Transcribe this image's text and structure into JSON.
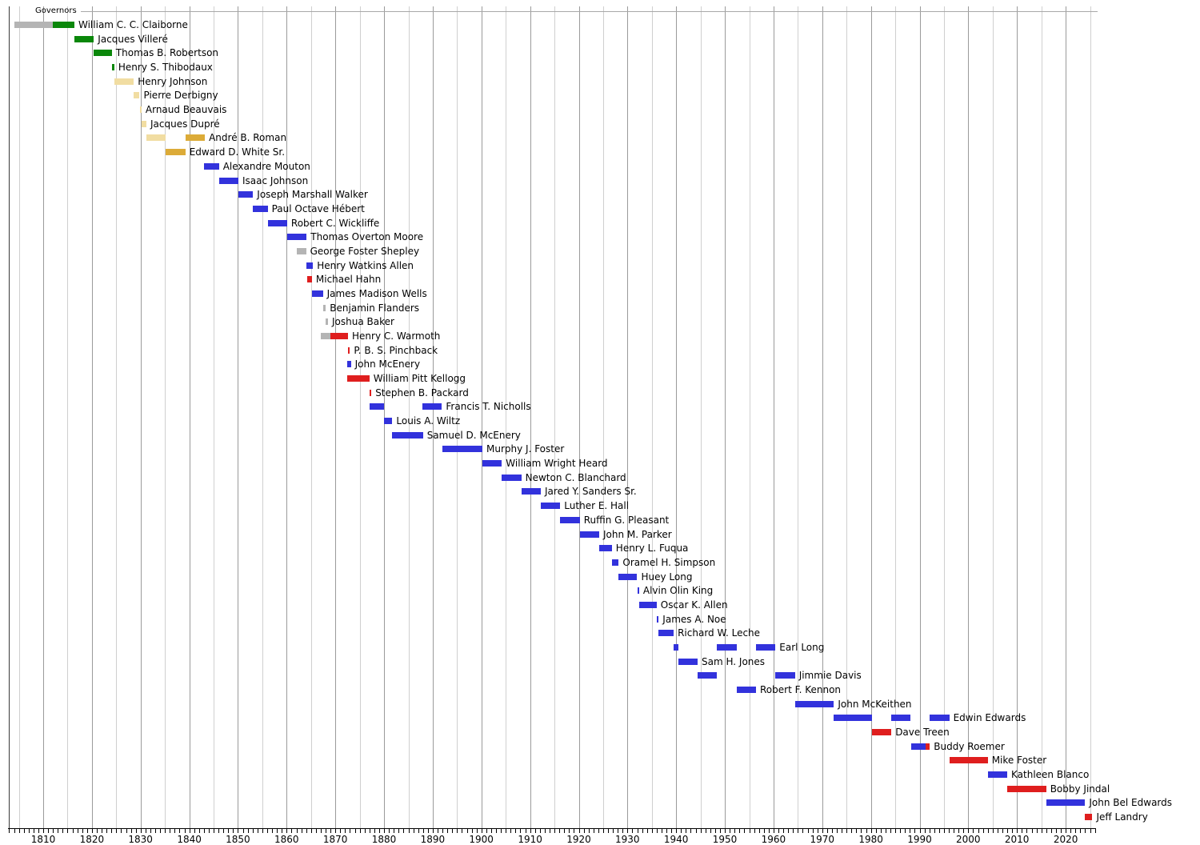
{
  "colors": {
    "democratic": "#3232dc",
    "republican": "#df1e1e",
    "democratic-republican": "#0a870a",
    "national-republican": "#f1dda2",
    "whig": "#dcab38",
    "none": "#b4b4b4",
    "gridline_major": "#9b9b9b",
    "gridline_minor": "#cfcfcf",
    "axis": "#000000",
    "label_text": "#000000"
  },
  "chart_data": {
    "type": "gantt",
    "title": "Governors",
    "legend": "none",
    "grid": "vertical, every 5 years (decades darker)",
    "x_axis": {
      "range": [
        1803,
        2026
      ],
      "minor_tick_interval_years": 1,
      "gridline_interval_years": 5,
      "decade_tick_labels": [
        "1810",
        "1820",
        "1830",
        "1840",
        "1850",
        "1860",
        "1870",
        "1880",
        "1890",
        "1900",
        "1910",
        "1920",
        "1930",
        "1940",
        "1950",
        "1960",
        "1970",
        "1980",
        "1990",
        "2000",
        "2010",
        "2020"
      ]
    },
    "rows": [
      {
        "name": "William C. C. Claiborne",
        "terms": [
          {
            "start": 1804.0,
            "end": 1812.0,
            "party": "none"
          },
          {
            "start": 1812.0,
            "end": 1816.4,
            "party": "democratic-republican"
          }
        ]
      },
      {
        "name": "Jacques Villeré",
        "terms": [
          {
            "start": 1816.4,
            "end": 1820.4,
            "party": "democratic-republican"
          }
        ]
      },
      {
        "name": "Thomas B. Robertson",
        "terms": [
          {
            "start": 1820.4,
            "end": 1824.1,
            "party": "democratic-republican"
          }
        ]
      },
      {
        "name": "Henry S. Thibodaux",
        "terms": [
          {
            "start": 1824.1,
            "end": 1824.6,
            "party": "democratic-republican"
          }
        ]
      },
      {
        "name": "Henry Johnson",
        "terms": [
          {
            "start": 1824.6,
            "end": 1828.6,
            "party": "national-republican"
          }
        ]
      },
      {
        "name": "Pierre Derbigny",
        "terms": [
          {
            "start": 1828.6,
            "end": 1829.8,
            "party": "national-republican"
          }
        ]
      },
      {
        "name": "Arnaud Beauvais",
        "terms": [
          {
            "start": 1829.8,
            "end": 1830.2,
            "party": "national-republican"
          }
        ]
      },
      {
        "name": "Jacques Dupré",
        "terms": [
          {
            "start": 1830.2,
            "end": 1831.2,
            "party": "national-republican"
          }
        ]
      },
      {
        "name": "André B. Roman",
        "terms": [
          {
            "start": 1831.2,
            "end": 1835.2,
            "party": "national-republican"
          },
          {
            "start": 1839.2,
            "end": 1843.2,
            "party": "whig"
          }
        ]
      },
      {
        "name": "Edward D. White Sr.",
        "terms": [
          {
            "start": 1835.2,
            "end": 1839.2,
            "party": "whig"
          }
        ]
      },
      {
        "name": "Alexandre Mouton",
        "terms": [
          {
            "start": 1843.1,
            "end": 1846.1,
            "party": "democratic"
          }
        ]
      },
      {
        "name": "Isaac Johnson",
        "terms": [
          {
            "start": 1846.1,
            "end": 1850.1,
            "party": "democratic"
          }
        ]
      },
      {
        "name": "Joseph Marshall Walker",
        "terms": [
          {
            "start": 1850.1,
            "end": 1853.1,
            "party": "democratic"
          }
        ]
      },
      {
        "name": "Paul Octave Hébert",
        "terms": [
          {
            "start": 1853.1,
            "end": 1856.1,
            "party": "democratic"
          }
        ]
      },
      {
        "name": "Robert C. Wickliffe",
        "terms": [
          {
            "start": 1856.1,
            "end": 1860.1,
            "party": "democratic"
          }
        ]
      },
      {
        "name": "Thomas Overton Moore",
        "terms": [
          {
            "start": 1860.1,
            "end": 1864.1,
            "party": "democratic"
          }
        ]
      },
      {
        "name": "George Foster Shepley",
        "terms": [
          {
            "start": 1862.0,
            "end": 1864.0,
            "party": "none"
          }
        ]
      },
      {
        "name": "Henry Watkins Allen",
        "terms": [
          {
            "start": 1864.1,
            "end": 1865.4,
            "party": "democratic"
          }
        ]
      },
      {
        "name": "Michael Hahn",
        "terms": [
          {
            "start": 1864.2,
            "end": 1865.2,
            "party": "republican"
          }
        ]
      },
      {
        "name": "James Madison Wells",
        "terms": [
          {
            "start": 1865.2,
            "end": 1867.45,
            "party": "democratic"
          }
        ]
      },
      {
        "name": "Benjamin Flanders",
        "terms": [
          {
            "start": 1867.45,
            "end": 1868.05,
            "party": "none"
          }
        ]
      },
      {
        "name": "Joshua Baker",
        "terms": [
          {
            "start": 1868.05,
            "end": 1868.5,
            "party": "none"
          }
        ]
      },
      {
        "name": "Henry C. Warmoth",
        "terms": [
          {
            "start": 1867.0,
            "end": 1869.0,
            "party": "none"
          },
          {
            "start": 1869.0,
            "end": 1872.6,
            "party": "republican"
          }
        ]
      },
      {
        "name": "P. B. S. Pinchback",
        "terms": [
          {
            "start": 1872.6,
            "end": 1873.0,
            "party": "republican"
          }
        ]
      },
      {
        "name": "John McEnery",
        "terms": [
          {
            "start": 1872.4,
            "end": 1873.2,
            "party": "democratic"
          }
        ]
      },
      {
        "name": "William Pitt Kellogg",
        "terms": [
          {
            "start": 1872.5,
            "end": 1877.0,
            "party": "republican"
          }
        ]
      },
      {
        "name": "Stephen B. Packard",
        "terms": [
          {
            "start": 1877.0,
            "end": 1877.4,
            "party": "republican"
          }
        ]
      },
      {
        "name": "Francis T. Nicholls",
        "terms": [
          {
            "start": 1877.0,
            "end": 1880.0,
            "party": "democratic"
          },
          {
            "start": 1887.9,
            "end": 1891.9,
            "party": "democratic"
          }
        ]
      },
      {
        "name": "Louis A. Wiltz",
        "terms": [
          {
            "start": 1880.0,
            "end": 1881.7,
            "party": "democratic"
          }
        ]
      },
      {
        "name": "Samuel D. McEnery",
        "terms": [
          {
            "start": 1881.7,
            "end": 1888.0,
            "party": "democratic"
          }
        ]
      },
      {
        "name": "Murphy J. Foster",
        "terms": [
          {
            "start": 1892.0,
            "end": 1900.2,
            "party": "democratic"
          }
        ]
      },
      {
        "name": "William Wright Heard",
        "terms": [
          {
            "start": 1900.2,
            "end": 1904.2,
            "party": "democratic"
          }
        ]
      },
      {
        "name": "Newton C. Blanchard",
        "terms": [
          {
            "start": 1904.2,
            "end": 1908.2,
            "party": "democratic"
          }
        ]
      },
      {
        "name": "Jared Y. Sanders Sr.",
        "terms": [
          {
            "start": 1908.2,
            "end": 1912.2,
            "party": "democratic"
          }
        ]
      },
      {
        "name": "Luther E. Hall",
        "terms": [
          {
            "start": 1912.2,
            "end": 1916.2,
            "party": "democratic"
          }
        ]
      },
      {
        "name": "Ruffin G. Pleasant",
        "terms": [
          {
            "start": 1916.2,
            "end": 1920.2,
            "party": "democratic"
          }
        ]
      },
      {
        "name": "John M. Parker",
        "terms": [
          {
            "start": 1920.2,
            "end": 1924.2,
            "party": "democratic"
          }
        ]
      },
      {
        "name": "Henry L. Fuqua",
        "terms": [
          {
            "start": 1924.2,
            "end": 1926.8,
            "party": "democratic"
          }
        ]
      },
      {
        "name": "Oramel H. Simpson",
        "terms": [
          {
            "start": 1926.8,
            "end": 1928.2,
            "party": "democratic"
          }
        ]
      },
      {
        "name": "Huey Long",
        "terms": [
          {
            "start": 1928.2,
            "end": 1932.0,
            "party": "democratic"
          }
        ]
      },
      {
        "name": "Alvin Olin King",
        "terms": [
          {
            "start": 1932.0,
            "end": 1932.4,
            "party": "democratic"
          }
        ]
      },
      {
        "name": "Oscar K. Allen",
        "terms": [
          {
            "start": 1932.4,
            "end": 1936.0,
            "party": "democratic"
          }
        ]
      },
      {
        "name": "James A. Noe",
        "terms": [
          {
            "start": 1936.0,
            "end": 1936.4,
            "party": "democratic"
          }
        ]
      },
      {
        "name": "Richard W. Leche",
        "terms": [
          {
            "start": 1936.4,
            "end": 1939.5,
            "party": "democratic"
          }
        ]
      },
      {
        "name": "Earl Long",
        "terms": [
          {
            "start": 1939.5,
            "end": 1940.4,
            "party": "democratic"
          },
          {
            "start": 1948.4,
            "end": 1952.4,
            "party": "democratic"
          },
          {
            "start": 1956.4,
            "end": 1960.4,
            "party": "democratic"
          }
        ]
      },
      {
        "name": "Sam H. Jones",
        "terms": [
          {
            "start": 1940.4,
            "end": 1944.4,
            "party": "democratic"
          }
        ]
      },
      {
        "name": "Jimmie Davis",
        "terms": [
          {
            "start": 1944.4,
            "end": 1948.4,
            "party": "democratic"
          },
          {
            "start": 1960.4,
            "end": 1964.4,
            "party": "democratic"
          }
        ]
      },
      {
        "name": "Robert F. Kennon",
        "terms": [
          {
            "start": 1952.4,
            "end": 1956.4,
            "party": "democratic"
          }
        ]
      },
      {
        "name": "John McKeithen",
        "terms": [
          {
            "start": 1964.4,
            "end": 1972.4,
            "party": "democratic"
          }
        ]
      },
      {
        "name": "Edwin Edwards",
        "terms": [
          {
            "start": 1972.4,
            "end": 1980.2,
            "party": "democratic"
          },
          {
            "start": 1984.2,
            "end": 1988.2,
            "party": "democratic"
          },
          {
            "start": 1992.1,
            "end": 1996.1,
            "party": "democratic"
          }
        ]
      },
      {
        "name": "Dave Treen",
        "terms": [
          {
            "start": 1980.2,
            "end": 1984.2,
            "party": "republican"
          }
        ]
      },
      {
        "name": "Buddy Roemer",
        "terms": [
          {
            "start": 1988.2,
            "end": 1991.2,
            "party": "democratic"
          },
          {
            "start": 1991.2,
            "end": 1992.1,
            "party": "republican"
          }
        ]
      },
      {
        "name": "Mike Foster",
        "terms": [
          {
            "start": 1996.1,
            "end": 2004.0,
            "party": "republican"
          }
        ]
      },
      {
        "name": "Kathleen Blanco",
        "terms": [
          {
            "start": 2004.0,
            "end": 2008.0,
            "party": "democratic"
          }
        ]
      },
      {
        "name": "Bobby Jindal",
        "terms": [
          {
            "start": 2008.0,
            "end": 2016.0,
            "party": "republican"
          }
        ]
      },
      {
        "name": "John Bel Edwards",
        "terms": [
          {
            "start": 2016.0,
            "end": 2024.0,
            "party": "democratic"
          }
        ]
      },
      {
        "name": "Jeff Landry",
        "terms": [
          {
            "start": 2024.0,
            "end": 2025.5,
            "party": "republican"
          }
        ]
      }
    ]
  }
}
